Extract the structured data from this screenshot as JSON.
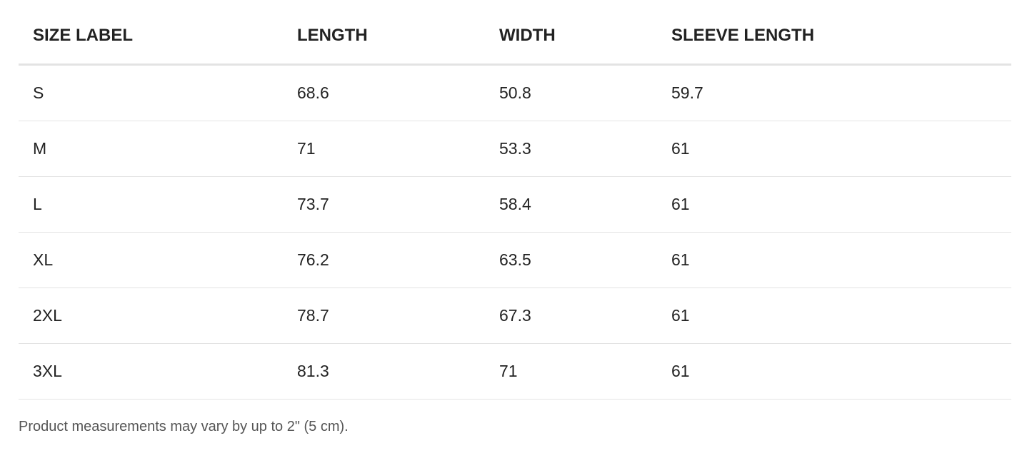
{
  "headers": [
    "SIZE LABEL",
    "LENGTH",
    "WIDTH",
    "SLEEVE LENGTH"
  ],
  "rows": [
    [
      "S",
      "68.6",
      "50.8",
      "59.7"
    ],
    [
      "M",
      "71",
      "53.3",
      "61"
    ],
    [
      "L",
      "73.7",
      "58.4",
      "61"
    ],
    [
      "XL",
      "76.2",
      "63.5",
      "61"
    ],
    [
      "2XL",
      "78.7",
      "67.3",
      "61"
    ],
    [
      "3XL",
      "81.3",
      "71",
      "61"
    ]
  ],
  "note": "Product measurements may vary by up to 2\" (5 cm)."
}
